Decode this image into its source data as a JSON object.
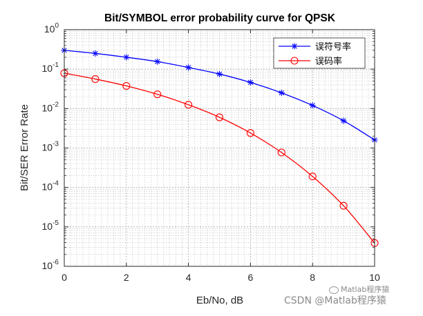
{
  "chart_data": {
    "type": "line",
    "title": "Bit/SYMBOL error probability curve for QPSK",
    "xlabel": "Eb/No, dB",
    "ylabel": "Bit/SER Error Rate",
    "yscale": "log",
    "xlim": [
      0,
      10
    ],
    "ylim": [
      1e-06,
      1
    ],
    "grid": true,
    "minor_grid": true,
    "legend_position": "top-right",
    "x_ticks": [
      0,
      2,
      4,
      6,
      8,
      10
    ],
    "y_ticks": [
      {
        "value": 1,
        "base": "10",
        "exp": "0"
      },
      {
        "value": 0.1,
        "base": "10",
        "exp": "-1"
      },
      {
        "value": 0.01,
        "base": "10",
        "exp": "-2"
      },
      {
        "value": 0.001,
        "base": "10",
        "exp": "-3"
      },
      {
        "value": 0.0001,
        "base": "10",
        "exp": "-4"
      },
      {
        "value": 1e-05,
        "base": "10",
        "exp": "-5"
      },
      {
        "value": 1e-06,
        "base": "10",
        "exp": "-6"
      }
    ],
    "x": [
      0,
      1,
      2,
      3,
      4,
      5,
      6,
      7,
      8,
      9,
      10
    ],
    "series": [
      {
        "name": "误符号率",
        "color": "#0000ff",
        "marker": "asterisk",
        "values": [
          0.3,
          0.25,
          0.2,
          0.155,
          0.11,
          0.075,
          0.046,
          0.025,
          0.012,
          0.0049,
          0.0016
        ]
      },
      {
        "name": "误码率",
        "color": "#ff0000",
        "marker": "circle",
        "values": [
          0.079,
          0.056,
          0.0375,
          0.023,
          0.0125,
          0.006,
          0.0024,
          0.00077,
          0.00019,
          3.43e-05,
          3.9e-06
        ]
      }
    ]
  },
  "watermark": {
    "logo_text": "Matlab程序猿",
    "text": "CSDN @Matlab程序猿"
  }
}
